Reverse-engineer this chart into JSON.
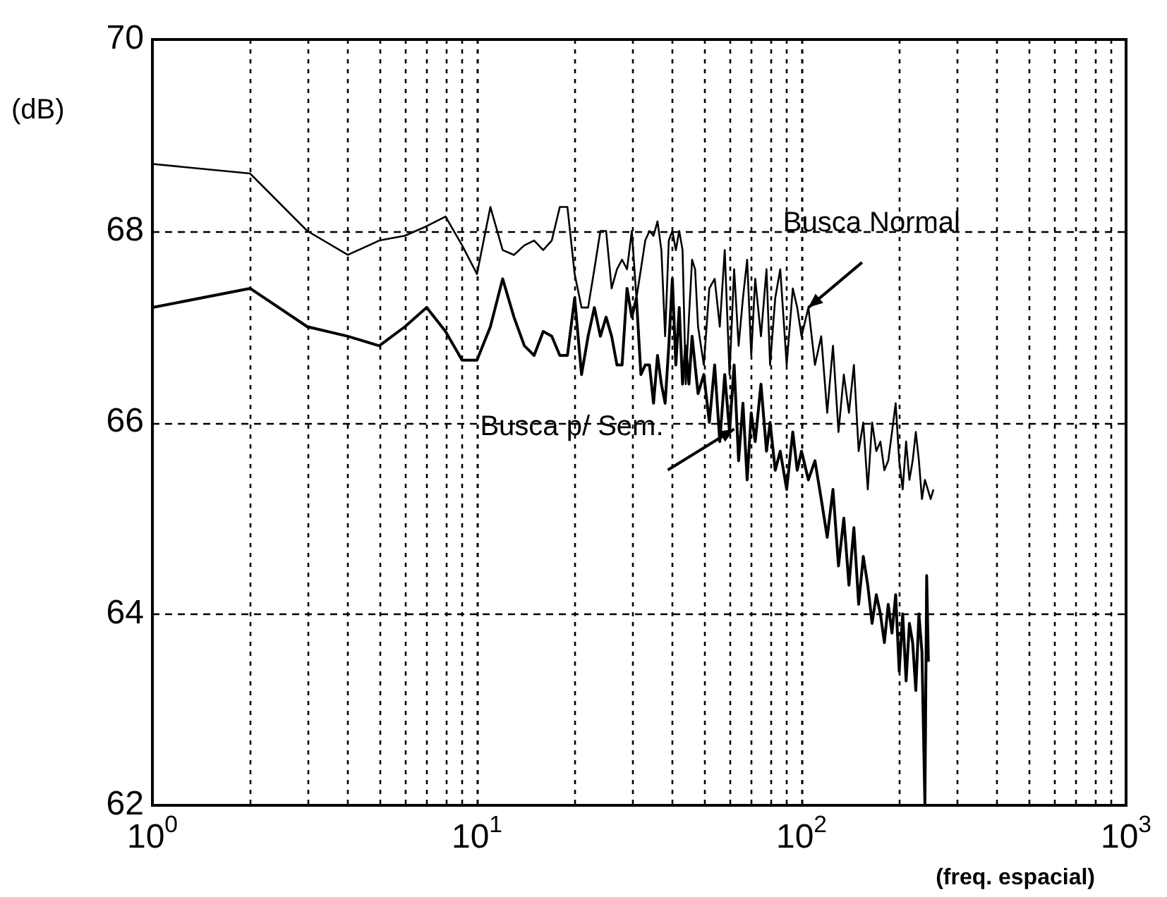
{
  "chart_data": {
    "type": "line",
    "xlabel": "(freq. espacial)",
    "ylabel": "(dB)",
    "log": "x",
    "grid": true,
    "legend": false,
    "marker": "none",
    "line_style": "solid",
    "xlim": [
      1,
      1000
    ],
    "xticks": [
      {
        "value": 1,
        "label": "10$^{0}$"
      },
      {
        "value": 10,
        "label": "10$^{1}$"
      },
      {
        "value": 100,
        "label": "10$^{2}$"
      },
      {
        "value": 1000,
        "label": "10$^{3}$"
      }
    ],
    "ylim": [
      62,
      70
    ],
    "yticks": [
      62,
      64,
      66,
      68,
      70
    ],
    "series": [
      {
        "color": "#000000",
        "x": [
          1,
          2,
          3,
          4,
          5,
          6,
          7,
          8,
          9,
          10,
          11,
          12,
          13,
          14,
          15,
          16,
          17,
          18,
          19,
          20,
          21,
          22,
          23,
          24,
          25,
          26,
          27,
          28,
          29,
          30,
          31,
          32,
          33,
          34,
          35,
          36,
          37,
          38,
          39,
          40,
          41,
          42,
          43,
          44,
          45,
          46,
          47,
          48,
          50,
          52,
          54,
          56,
          58,
          60,
          62,
          64,
          66,
          68,
          70,
          72,
          75,
          78,
          80,
          83,
          86,
          90,
          94,
          97,
          100,
          105,
          110,
          115,
          120,
          125,
          130,
          135,
          140,
          145,
          150,
          155,
          160,
          165,
          170,
          175,
          180,
          185,
          190,
          195,
          200,
          205,
          210,
          215,
          220,
          225,
          230,
          235,
          240,
          245,
          250,
          255
        ],
        "values": [
          68.7,
          68.6,
          68.0,
          67.75,
          67.9,
          67.95,
          68.05,
          68.15,
          67.85,
          67.55,
          68.25,
          67.8,
          67.75,
          67.85,
          67.9,
          67.8,
          67.9,
          68.25,
          68.25,
          67.55,
          67.2,
          67.2,
          67.6,
          68.0,
          68.0,
          67.4,
          67.6,
          67.7,
          67.6,
          68.0,
          67.3,
          67.6,
          67.9,
          68.0,
          67.95,
          68.1,
          67.8,
          66.9,
          67.9,
          68.0,
          67.8,
          68.0,
          67.8,
          66.4,
          67.1,
          67.7,
          67.6,
          67.0,
          66.6,
          67.4,
          67.5,
          67.0,
          67.8,
          66.5,
          67.6,
          66.8,
          67.3,
          67.7,
          66.7,
          67.5,
          66.9,
          67.6,
          66.6,
          67.3,
          67.6,
          66.6,
          67.4,
          67.2,
          66.9,
          67.2,
          66.6,
          66.9,
          66.1,
          66.8,
          65.9,
          66.5,
          66.1,
          66.6,
          65.7,
          66.0,
          65.3,
          66.0,
          65.7,
          65.8,
          65.5,
          65.6,
          65.9,
          66.2,
          65.6,
          65.3,
          65.8,
          65.4,
          65.6,
          65.9,
          65.6,
          65.2,
          65.4,
          65.3,
          65.2,
          65.3
        ]
      },
      {
        "color": "#000000",
        "x": [
          1,
          2,
          3,
          4,
          5,
          6,
          7,
          8,
          9,
          10,
          11,
          12,
          13,
          14,
          15,
          16,
          17,
          18,
          19,
          20,
          21,
          22,
          23,
          24,
          25,
          26,
          27,
          28,
          29,
          30,
          31,
          32,
          33,
          34,
          35,
          36,
          37,
          38,
          39,
          40,
          41,
          42,
          43,
          44,
          45,
          46,
          48,
          50,
          52,
          54,
          56,
          58,
          60,
          62,
          64,
          66,
          68,
          70,
          72,
          75,
          78,
          80,
          83,
          86,
          90,
          94,
          97,
          100,
          105,
          110,
          115,
          120,
          125,
          130,
          135,
          140,
          145,
          150,
          155,
          160,
          165,
          170,
          175,
          180,
          185,
          190,
          195,
          200,
          205,
          210,
          215,
          220,
          225,
          230,
          235,
          240,
          243,
          246
        ],
        "values": [
          67.2,
          67.4,
          67.0,
          66.9,
          66.8,
          67.0,
          67.2,
          66.95,
          66.65,
          66.65,
          67.0,
          67.5,
          67.1,
          66.8,
          66.7,
          66.95,
          66.9,
          66.7,
          66.7,
          67.3,
          66.5,
          66.9,
          67.2,
          66.9,
          67.1,
          66.9,
          66.6,
          66.6,
          67.4,
          67.1,
          67.3,
          66.5,
          66.6,
          66.6,
          66.2,
          66.7,
          66.4,
          66.2,
          66.8,
          67.5,
          66.6,
          67.2,
          66.4,
          66.8,
          66.4,
          66.9,
          66.3,
          66.5,
          66.0,
          66.6,
          65.8,
          66.5,
          65.9,
          66.6,
          65.6,
          66.2,
          65.4,
          66.1,
          65.8,
          66.4,
          65.7,
          66.0,
          65.5,
          65.7,
          65.3,
          65.9,
          65.5,
          65.7,
          65.4,
          65.6,
          65.2,
          64.8,
          65.3,
          64.5,
          65.0,
          64.3,
          64.9,
          64.1,
          64.6,
          64.3,
          63.9,
          64.2,
          64.0,
          63.7,
          64.1,
          63.8,
          64.2,
          63.4,
          64.0,
          63.3,
          63.9,
          63.7,
          63.2,
          64.0,
          63.6,
          62.0,
          64.4,
          63.5
        ]
      }
    ],
    "annotations": [
      {
        "text": "Busca Normal",
        "x": 105,
        "y": 67.2
      },
      {
        "text": "Busca p/ Sem.",
        "x": 62,
        "y": 65.93
      }
    ]
  }
}
